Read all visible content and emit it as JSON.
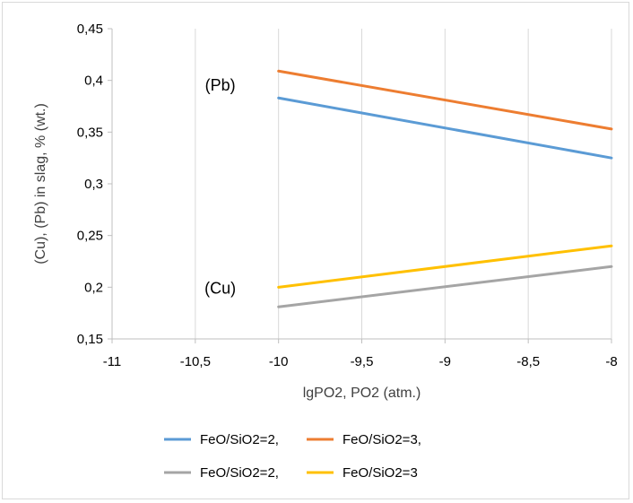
{
  "chart_data": {
    "type": "line",
    "title": "",
    "xlabel": "lgPO2, PO2  (atm.)",
    "ylabel": "(Cu), (Pb) in slag, % (wt.)",
    "xlim": [
      -11,
      -8
    ],
    "ylim": [
      0.15,
      0.45
    ],
    "x_ticks": [
      "-11",
      "-10,5",
      "-10",
      "-9,5",
      "-9",
      "-8,5",
      "-8"
    ],
    "y_ticks": [
      "0,15",
      "0,2",
      "0,25",
      "0,3",
      "0,35",
      "0,4",
      "0,45"
    ],
    "grid": "vertical",
    "legend_position": "bottom",
    "annotations": [
      {
        "text": "(Pb)",
        "x": -10.35,
        "y": 0.39
      },
      {
        "text": "(Cu)",
        "x": -10.35,
        "y": 0.194
      }
    ],
    "series": [
      {
        "name": "FeO/SiO2=2,",
        "color": "#5b9bd5",
        "x": [
          -10,
          -8
        ],
        "y": [
          0.383,
          0.325
        ]
      },
      {
        "name": "FeO/SiO2=3,",
        "color": "#ed7d31",
        "x": [
          -10,
          -8
        ],
        "y": [
          0.409,
          0.353
        ]
      },
      {
        "name": "FeO/SiO2=2,",
        "color": "#a5a5a5",
        "x": [
          -10,
          -8
        ],
        "y": [
          0.181,
          0.22
        ]
      },
      {
        "name": "FeO/SiO2=3",
        "color": "#ffc000",
        "x": [
          -10,
          -8
        ],
        "y": [
          0.2,
          0.24
        ]
      }
    ]
  }
}
